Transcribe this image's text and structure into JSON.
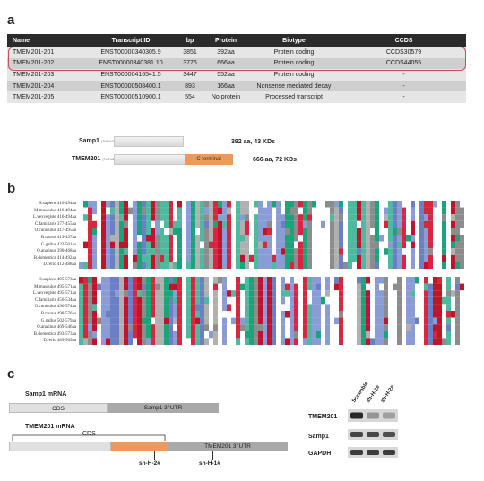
{
  "panels": {
    "a": "a",
    "b": "b",
    "c": "c"
  },
  "table": {
    "headers": [
      "Name",
      "Transcript ID",
      "bp",
      "Protein",
      "Biotype",
      "CCDS"
    ],
    "rows": [
      [
        "TMEM201-201",
        "ENST00000340305.9",
        "3851",
        "392aa",
        "Protein coding",
        "CCDS30579"
      ],
      [
        "TMEM201-202",
        "ENST00000340381.10",
        "3776",
        "666aa",
        "Protein coding",
        "CCDS44055"
      ],
      [
        "TMEM201-203",
        "ENST00000416541.5",
        "3447",
        "552aa",
        "Protein coding",
        "-"
      ],
      [
        "TMEM201-204",
        "ENST00000508400.1",
        "893",
        "166aa",
        "Nonsense mediated decay",
        "-"
      ],
      [
        "TMEM201-205",
        "ENST00000510900.1",
        "554",
        "No protein",
        "Processed transcript",
        "-"
      ]
    ]
  },
  "proteins": {
    "samp1": {
      "label": "Samp1",
      "sub": "(TMEM201-201)",
      "info": "392 aa, 43 KDs"
    },
    "tmem201": {
      "label": "TMEM201",
      "sub": "(TMEM201-202)",
      "info": "666 aa, 72 KDs",
      "terminal": "C terminal"
    }
  },
  "alignment": {
    "block1_species": [
      "H.sapiens 416-494aa",
      "M.musculus 416-494aa",
      "L.vexvegiste 416-494aa",
      "C.familiaris 377-455aa",
      "O.cuniculus 417-495aa",
      "B.taurus 419-497aa",
      "G.gallus 423-501aa",
      "O.anatinus 390-468aa",
      "B.domestica 414-492aa",
      "D.rerio 412-488aa"
    ],
    "block2_species": [
      "H.sapiens 495-573aa",
      "M.musculus 495-571aa",
      "L.vexvegiste 495-571aa",
      "C.familiaris 456-534aa",
      "O.cuniculus 496-574aa",
      "B.taurus 498-576aa",
      "G.gallus 502-579aa",
      "O.anatinus 469-546aa",
      "B.domestica 493-573aa",
      "D.rerio 489-569aa"
    ]
  },
  "mrna": {
    "samp1_title": "Samp1 mRNA",
    "samp1_cds": "CDS",
    "samp1_utr": "Samp1 3' UTR",
    "tmem_title": "TMEM201 mRNA",
    "tmem_cds": "CDS",
    "tmem_utr": "TMEM201 3' UTR",
    "sh2": "sh-H-2#",
    "sh1": "sh-H-1#"
  },
  "western": {
    "lanes": [
      "Scramble",
      "sh-H-1#",
      "sh-H-2#"
    ],
    "bands": [
      "TMEM201",
      "Samp1",
      "GAPDH"
    ]
  },
  "colors": {
    "highlight": "#d24a5a",
    "terminal": "#ea9a5c",
    "header": "#2b2b2b"
  }
}
